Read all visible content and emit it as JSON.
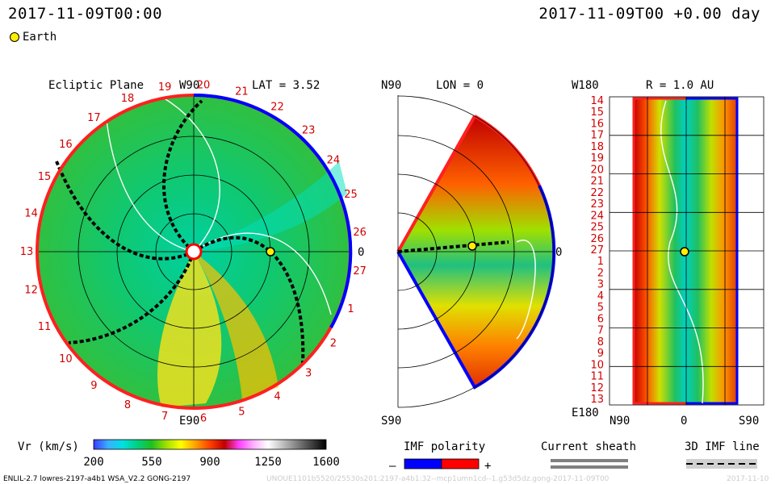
{
  "header": {
    "left_time": "2017-11-09T00:00",
    "right_time": "2017-11-09T00 +0.00 day"
  },
  "legend": {
    "earth_label": "Earth",
    "earth_color": "#ffee00"
  },
  "panels": {
    "ecliptic": {
      "title": "Ecliptic Plane",
      "lat_label": "LAT = 3.52",
      "top_label": "W90",
      "bottom_label": "E90",
      "right_label": "0",
      "rotation_numbers": [
        "19",
        "20",
        "21",
        "22",
        "23",
        "24",
        "25",
        "26",
        "27",
        "1",
        "2",
        "3",
        "4",
        "5",
        "6",
        "7",
        "8",
        "9",
        "10",
        "11",
        "12",
        "13",
        "14",
        "15",
        "16",
        "17",
        "18"
      ]
    },
    "meridional": {
      "top_label": "N90",
      "lon_label": "LON = 0",
      "right_label": "0",
      "bottom_label": "S90"
    },
    "map": {
      "top_left_label": "W180",
      "title": "R = 1.0 AU",
      "bottom_left_label": "E180",
      "x_labels": [
        "N90",
        "0",
        "S90"
      ],
      "y_labels": [
        "14",
        "15",
        "16",
        "17",
        "18",
        "19",
        "20",
        "21",
        "22",
        "23",
        "24",
        "25",
        "26",
        "27",
        "1",
        "2",
        "3",
        "4",
        "5",
        "6",
        "7",
        "8",
        "9",
        "10",
        "11",
        "12",
        "13"
      ]
    }
  },
  "colorbar": {
    "label": "Vr (km/s)",
    "ticks": [
      "200",
      "550",
      "900",
      "1250",
      "1600"
    ],
    "colors": [
      "#3a3aff",
      "#3ab0ff",
      "#00e0e0",
      "#00d080",
      "#20c020",
      "#a0e000",
      "#ffff00",
      "#ffa000",
      "#ff4000",
      "#c00000",
      "#ff40ff",
      "#ffb0ff",
      "#ffffff",
      "#c0c0c0",
      "#808080",
      "#404040",
      "#000000"
    ]
  },
  "imf_polarity": {
    "label": "IMF polarity",
    "minus": "–",
    "plus": "+",
    "negative_color": "#0000ff",
    "positive_color": "#ff0000"
  },
  "current_sheath": {
    "label": "Current sheath",
    "color": "#808080"
  },
  "imf_line": {
    "label": "3D IMF line"
  },
  "footer": {
    "model_info": "ENLIL-2.7 lowres-2197-a4b1 WSA_V2.2 GONG-2197",
    "run_info": "UNOUE1101b5520/25530s201:2197-a4b1:32--mcp1umn1cd--1.g53d5dz.gong-2017-11-09T00",
    "date_stub": "2017-11-10"
  },
  "chart_data": [
    {
      "type": "heatmap",
      "title": "Ecliptic Plane",
      "quantity": "Vr (km/s)",
      "range": [
        200,
        1600
      ],
      "earth": {
        "lat": 3.52
      }
    },
    {
      "type": "heatmap",
      "title": "LON = 0",
      "quantity": "Vr (km/s)",
      "range": [
        200,
        1600
      ]
    },
    {
      "type": "heatmap",
      "title": "R = 1.0 AU",
      "quantity": "Vr (km/s)",
      "range": [
        200,
        1600
      ]
    }
  ]
}
